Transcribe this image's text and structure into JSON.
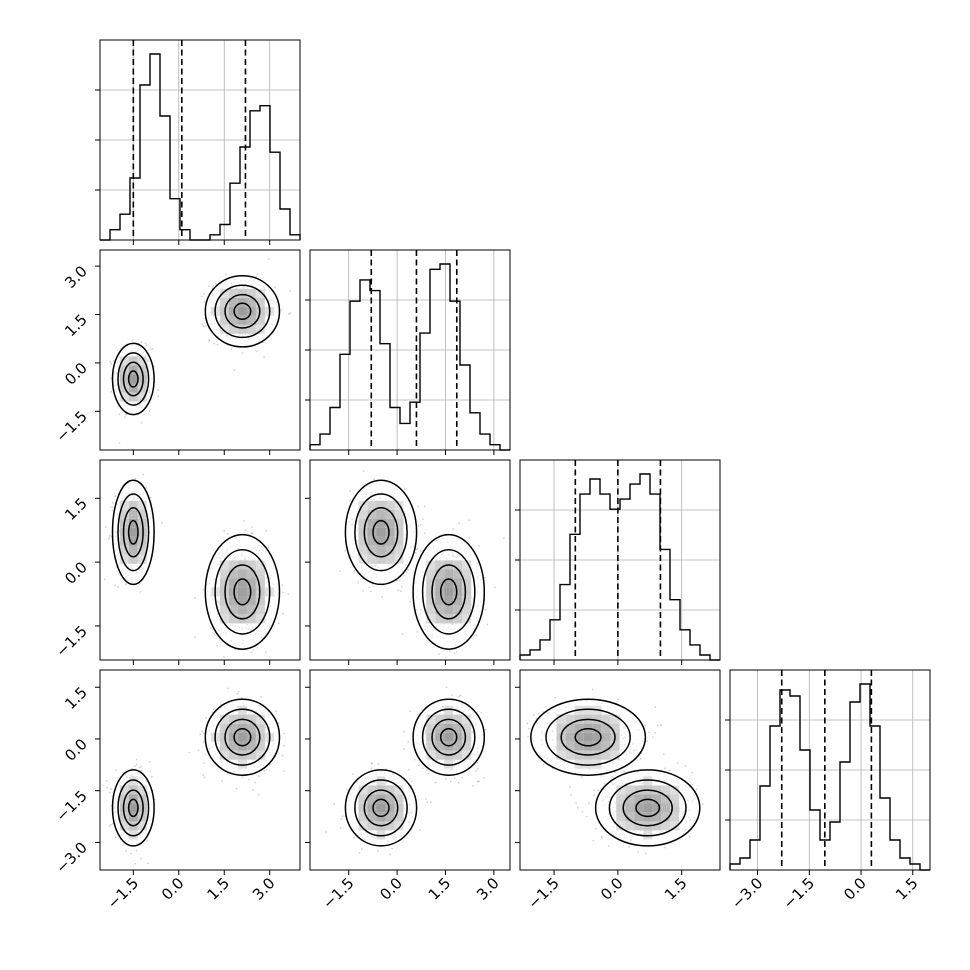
{
  "chart_data": {
    "type": "corner",
    "title": "",
    "n_params": 4,
    "grid": true,
    "param_labels": [
      "",
      "",
      "",
      ""
    ],
    "ranges": [
      [
        -2.6,
        4.0
      ],
      [
        -2.7,
        3.5
      ],
      [
        -2.3,
        2.4
      ],
      [
        -3.8,
        2.0
      ]
    ],
    "ticks": [
      [
        "−1.5",
        "0.0",
        "1.5",
        "3.0"
      ],
      [
        "−1.5",
        "0.0",
        "1.5",
        "3.0"
      ],
      [
        "−1.5",
        "0.0",
        "1.5"
      ],
      [
        "−3.0",
        "−1.5",
        "0.0",
        "1.5"
      ]
    ],
    "quantiles": [
      [
        -1.5,
        0.1,
        2.2
      ],
      [
        -0.8,
        0.6,
        1.85
      ],
      [
        -1.0,
        0.0,
        1.0
      ],
      [
        -2.3,
        -1.05,
        0.3
      ]
    ],
    "modes": [
      {
        "weight": 0.5,
        "mean": [
          -1.5,
          -0.5,
          0.7,
          -2.0
        ],
        "sd": [
          0.28,
          0.45,
          0.5,
          0.45
        ]
      },
      {
        "weight": 0.5,
        "mean": [
          2.1,
          1.6,
          -0.7,
          0.05
        ],
        "sd": [
          0.5,
          0.45,
          0.55,
          0.45
        ]
      }
    ],
    "histograms": [
      {
        "values": [
          0,
          2,
          5,
          12,
          30,
          36,
          24,
          8,
          2,
          0,
          0,
          1,
          3,
          11,
          18,
          25,
          26,
          17,
          6,
          1
        ]
      },
      {
        "values": [
          1,
          3,
          8,
          18,
          28,
          32,
          30,
          20,
          8,
          5,
          9,
          22,
          34,
          35,
          28,
          16,
          7,
          3,
          1,
          0
        ]
      },
      {
        "values": [
          1,
          2,
          4,
          8,
          15,
          25,
          33,
          36,
          33,
          30,
          32,
          35,
          37,
          33,
          22,
          12,
          6,
          3,
          1,
          0
        ]
      },
      {
        "values": [
          1,
          2,
          5,
          14,
          24,
          30,
          29,
          20,
          10,
          5,
          8,
          18,
          28,
          31,
          24,
          12,
          5,
          2,
          1,
          0
        ]
      }
    ]
  }
}
